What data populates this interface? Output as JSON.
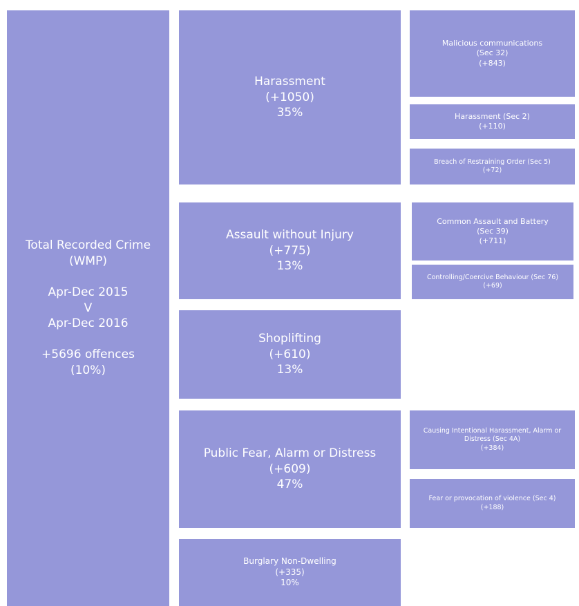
{
  "nodes": [
    {
      "groups": [
        [
          "Total Recorded Crime",
          "(WMP)"
        ],
        [
          "Apr-Dec 2015",
          "V",
          "Apr-Dec 2016"
        ],
        [
          "+5696 offences",
          "(10%)"
        ]
      ]
    },
    {
      "lines": [
        "Harassment",
        "(+1050)",
        "35%"
      ]
    },
    {
      "lines": [
        "Assault without Injury",
        "(+775)",
        "13%"
      ]
    },
    {
      "lines": [
        "Shoplifting",
        "(+610)",
        "13%"
      ]
    },
    {
      "lines": [
        "Public Fear, Alarm or Distress",
        "(+609)",
        "47%"
      ]
    },
    {
      "lines": [
        "Burglary Non-Dwelling",
        "(+335)",
        "10%"
      ]
    },
    {
      "lines": [
        "Malicious communications",
        "(Sec 32)",
        "(+843)"
      ]
    },
    {
      "lines": [
        "Harassment (Sec 2)",
        "(+110)"
      ]
    },
    {
      "lines": [
        "Breach of Restraining Order (Sec 5)",
        "(+72)"
      ]
    },
    {
      "lines": [
        "Common Assault and Battery",
        "(Sec 39)",
        "(+711)"
      ]
    },
    {
      "lines": [
        "Controlling/Coercive Behaviour (Sec 76)",
        "(+69)"
      ]
    },
    {
      "lines": [
        "Causing Intentional Harassment, Alarm or Distress (Sec 4A)",
        "(+384)"
      ]
    },
    {
      "lines": [
        "Fear or provocation of violence (Sec 4)",
        "(+188)"
      ]
    }
  ]
}
